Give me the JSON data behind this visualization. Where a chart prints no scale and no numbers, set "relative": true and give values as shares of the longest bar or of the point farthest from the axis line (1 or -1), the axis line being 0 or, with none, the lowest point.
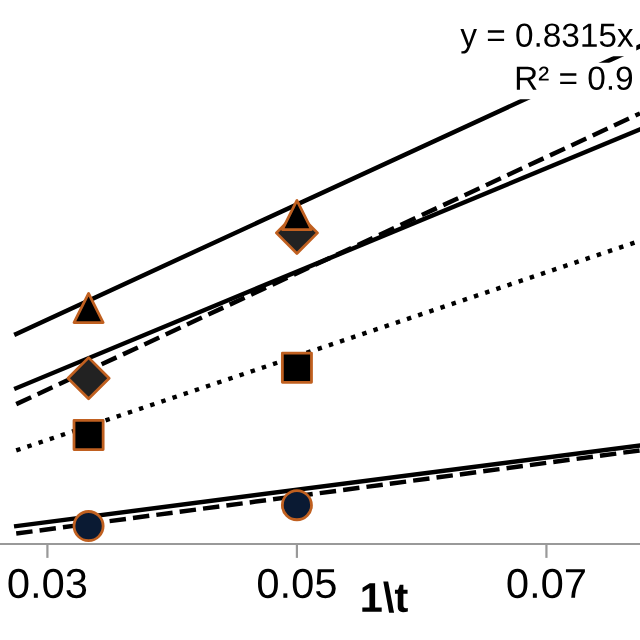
{
  "chart_data": {
    "type": "scatter",
    "xlabel": "1\\t",
    "relative": true,
    "xlim": [
      0.0262,
      0.0775
    ],
    "xticks": [
      0.03,
      0.05,
      0.07
    ],
    "grid": false,
    "legend": false,
    "annotations": [
      "y = 0.8315x",
      "R² = 0.9"
    ],
    "series": [
      {
        "type": "line",
        "color": "#000000",
        "line_style": "solid",
        "marker": "none",
        "x": [
          0.0275,
          0.0775
        ],
        "values": [
          0.422,
          1.0
        ]
      },
      {
        "type": "line",
        "color": "#000000",
        "line_style": "dashed",
        "marker": "none",
        "x": [
          0.0275,
          0.0775
        ],
        "values": [
          0.281,
          0.865
        ]
      },
      {
        "type": "line",
        "color": "#000000",
        "line_style": "solid",
        "marker": "none",
        "x": [
          0.0275,
          0.0775
        ],
        "values": [
          0.313,
          0.833
        ]
      },
      {
        "type": "line",
        "color": "#000000",
        "line_style": "dotted",
        "marker": "none",
        "x": [
          0.0275,
          0.0775
        ],
        "values": [
          0.188,
          0.609
        ]
      },
      {
        "type": "line",
        "color": "#000000",
        "line_style": "dashed",
        "marker": "none",
        "x": [
          0.0275,
          0.0775
        ],
        "values": [
          0.021,
          0.188
        ]
      },
      {
        "type": "line",
        "color": "#000000",
        "line_style": "solid",
        "marker": "none",
        "x": [
          0.0275,
          0.0775
        ],
        "values": [
          0.036,
          0.198
        ]
      },
      {
        "color": "#000000",
        "marker": "triangle",
        "x": [
          0.0333,
          0.05
        ],
        "values": [
          0.474,
          0.661
        ]
      },
      {
        "color": "#222222",
        "marker": "diamond",
        "x": [
          0.0333,
          0.05
        ],
        "values": [
          0.333,
          0.625
        ]
      },
      {
        "color": "#000000",
        "marker": "square",
        "x": [
          0.0333,
          0.05
        ],
        "values": [
          0.219,
          0.354
        ]
      },
      {
        "color": "#0a1a33",
        "marker": "circle",
        "x": [
          0.0333,
          0.05
        ],
        "values": [
          0.036,
          0.078
        ]
      }
    ]
  }
}
